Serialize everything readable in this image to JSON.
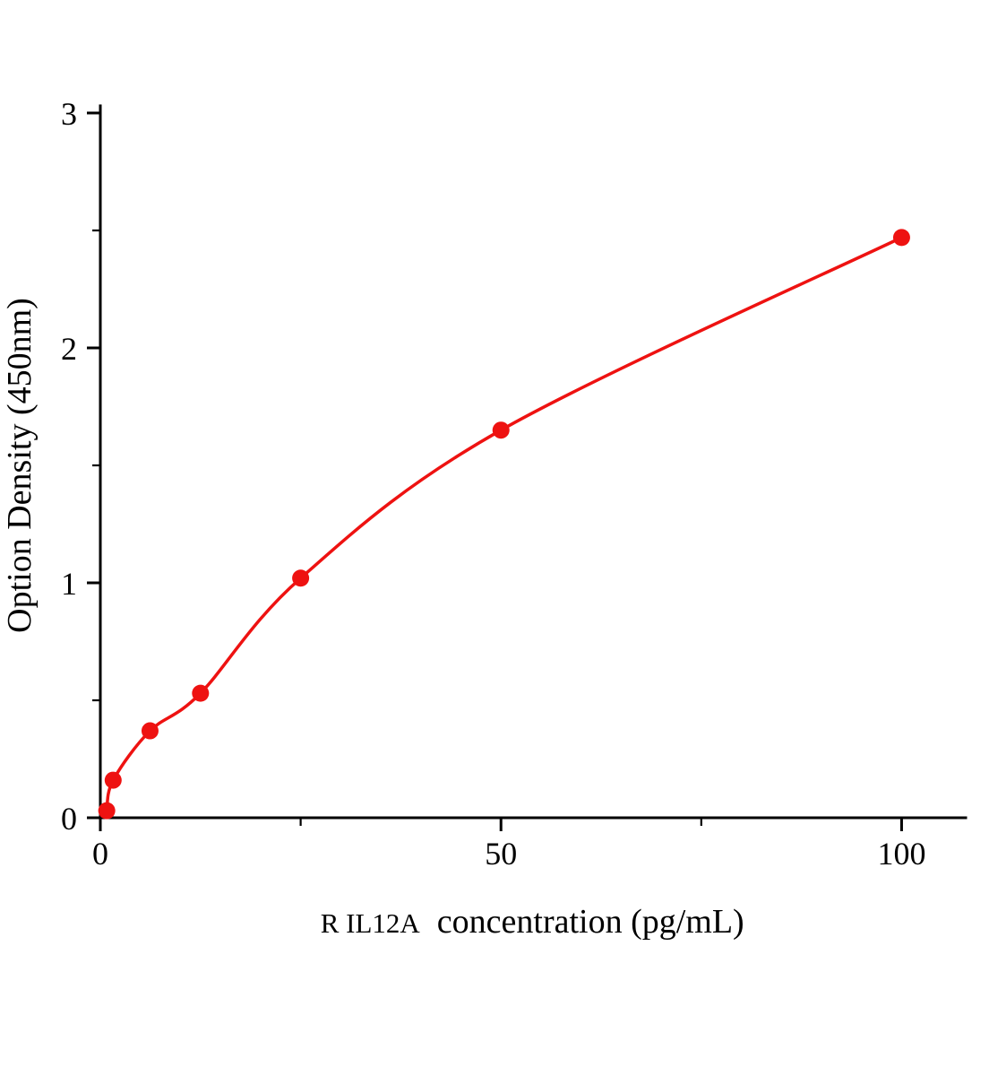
{
  "figure": {
    "background": "#ffffff"
  },
  "chart_data": {
    "type": "scatter",
    "title": "",
    "xlabel_prefix": "R IL12A",
    "xlabel": "concentration（pg/mL）",
    "ylabel": "Option Density（450nm）",
    "x": [
      0.8,
      1.6,
      6.2,
      12.5,
      25,
      50,
      100
    ],
    "y": [
      0.03,
      0.16,
      0.37,
      0.53,
      1.02,
      1.65,
      2.47
    ],
    "xlim": [
      0,
      108
    ],
    "ylim": [
      0,
      3
    ],
    "x_major_ticks": [
      0,
      50,
      100
    ],
    "x_minor_ticks": [
      25,
      75
    ],
    "y_major_ticks": [
      0,
      1,
      2,
      3
    ],
    "y_minor_ticks": [
      0.5,
      1.5,
      2.5
    ],
    "grid": false,
    "legend": false,
    "curve": "smooth fit through points",
    "series_color": "#ee1211",
    "axis_color": "#000000",
    "marker_radius": 9.5,
    "line_width": 3.5
  }
}
